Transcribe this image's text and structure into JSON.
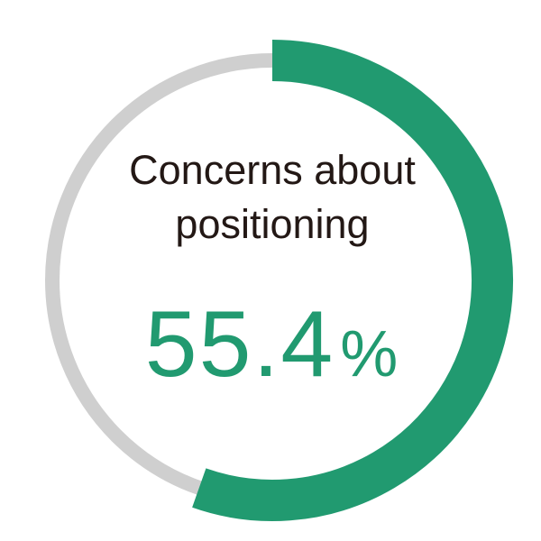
{
  "chart_data": {
    "type": "pie",
    "variant": "donut",
    "title_lines": [
      "Concerns about",
      "positioning"
    ],
    "value": 55.4,
    "value_label": "55.4",
    "unit": "%",
    "max": 100,
    "colors": {
      "value": "#219a70",
      "remainder": "#cfcfcf",
      "text": "#231815"
    }
  }
}
